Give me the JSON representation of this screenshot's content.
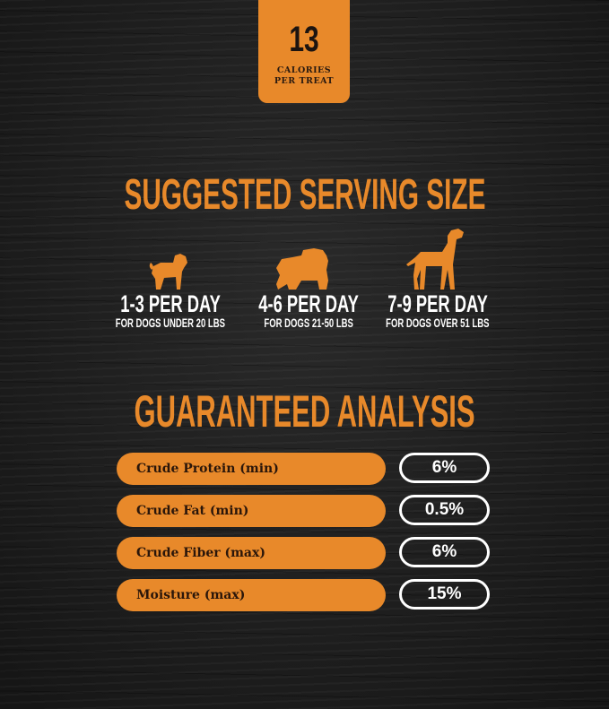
{
  "badge": {
    "number": "13",
    "line1": "CALORIES",
    "line2": "PER TREAT"
  },
  "serving": {
    "title": "SUGGESTED SERVING SIZE",
    "items": [
      {
        "icon": "pug-icon",
        "amount": "1-3 PER DAY",
        "note": "FOR DOGS UNDER 20 LBS"
      },
      {
        "icon": "bulldog-icon",
        "amount": "4-6 PER DAY",
        "note": "FOR DOGS 21-50 LBS"
      },
      {
        "icon": "great-dane-icon",
        "amount": "7-9  PER DAY",
        "note": "FOR DOGS OVER 51 LBS"
      }
    ]
  },
  "analysis": {
    "title": "GUARANTEED ANALYSIS",
    "rows": [
      {
        "label": "Crude Protein (min)",
        "value": "6%"
      },
      {
        "label": "Crude Fat (min)",
        "value": "0.5%"
      },
      {
        "label": "Crude Fiber (max)",
        "value": "6%"
      },
      {
        "label": "Moisture (max)",
        "value": "15%"
      }
    ]
  },
  "colors": {
    "accent": "#e8892a",
    "background": "#1d1d1d",
    "text": "#ffffff"
  }
}
